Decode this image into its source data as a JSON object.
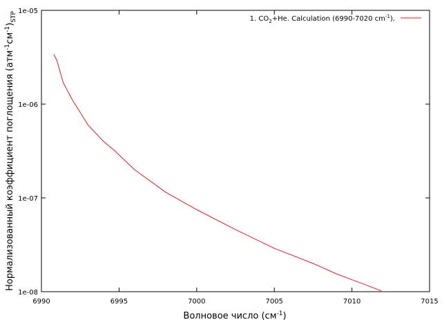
{
  "chart_data": {
    "type": "line",
    "title": "",
    "xlabel": "Волновое число (см",
    "xlabel_sup": "-1",
    "xlabel_tail": ")",
    "ylabel_main": "Нормализованный коэффициент поглощения (атм",
    "ylabel_sup1": "-1",
    "ylabel_mid": "см",
    "ylabel_sup2": "-1",
    "ylabel_close": ")",
    "ylabel_sub": "STP",
    "xlim": [
      6990,
      7015
    ],
    "ylim": [
      1e-08,
      1e-05
    ],
    "y_scale": "log",
    "x_ticks": [
      "6990",
      "6995",
      "7000",
      "7005",
      "7010",
      "7015"
    ],
    "y_ticks": [
      "1e-08",
      "1e-07",
      "1e-06",
      "1e-05"
    ],
    "legend_placement": "top-right",
    "series": [
      {
        "name_prefix": "1. CO",
        "name_sub": "2",
        "name_mid": "+He. Calculation (6990-7020 cm",
        "name_sup": "-1",
        "name_suffix": ").",
        "color": "#e41a1c",
        "x": [
          6990.8,
          6991.0,
          6991.4,
          6992.0,
          6992.3,
          6993.0,
          6994.0,
          6994.7,
          6996.0,
          6998.0,
          7000.0,
          7002.5,
          7005.0,
          7007.5,
          7009.0,
          7010.5,
          7011.9
        ],
        "y": [
          3.4e-06,
          2.9e-06,
          1.7e-06,
          1.1e-06,
          9.2e-07,
          6e-07,
          4e-07,
          3.2e-07,
          2e-07,
          1.15e-07,
          7.5e-08,
          4.6e-08,
          2.9e-08,
          2e-08,
          1.55e-08,
          1.25e-08,
          1.02e-08
        ]
      }
    ]
  }
}
